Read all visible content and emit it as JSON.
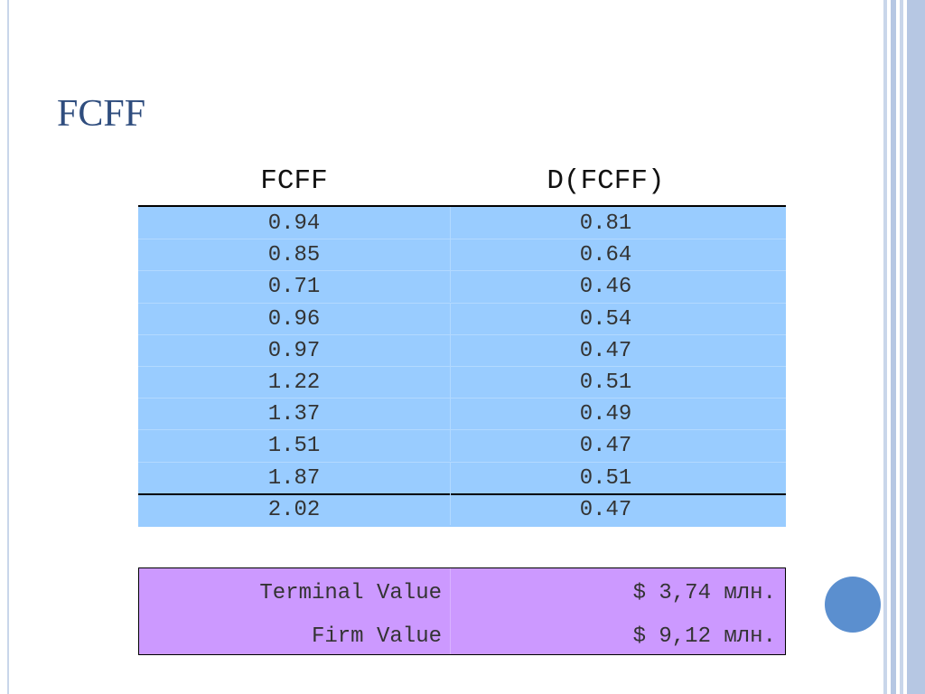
{
  "title": "FCFF",
  "table": {
    "header": [
      "FCFF",
      "D(FCFF)"
    ],
    "rows": [
      [
        "0.94",
        "0.81"
      ],
      [
        "0.85",
        "0.64"
      ],
      [
        "0.71",
        "0.46"
      ],
      [
        "0.96",
        "0.54"
      ],
      [
        "0.97",
        "0.47"
      ],
      [
        "1.22",
        "0.51"
      ],
      [
        "1.37",
        "0.49"
      ],
      [
        "1.51",
        "0.47"
      ],
      [
        "1.87",
        "0.51"
      ],
      [
        "2.02",
        "0.47"
      ]
    ]
  },
  "summary": {
    "rows": [
      [
        "Terminal Value",
        "$ 3,74 млн."
      ],
      [
        "Firm Value",
        "$ 9,12 млн."
      ]
    ]
  }
}
